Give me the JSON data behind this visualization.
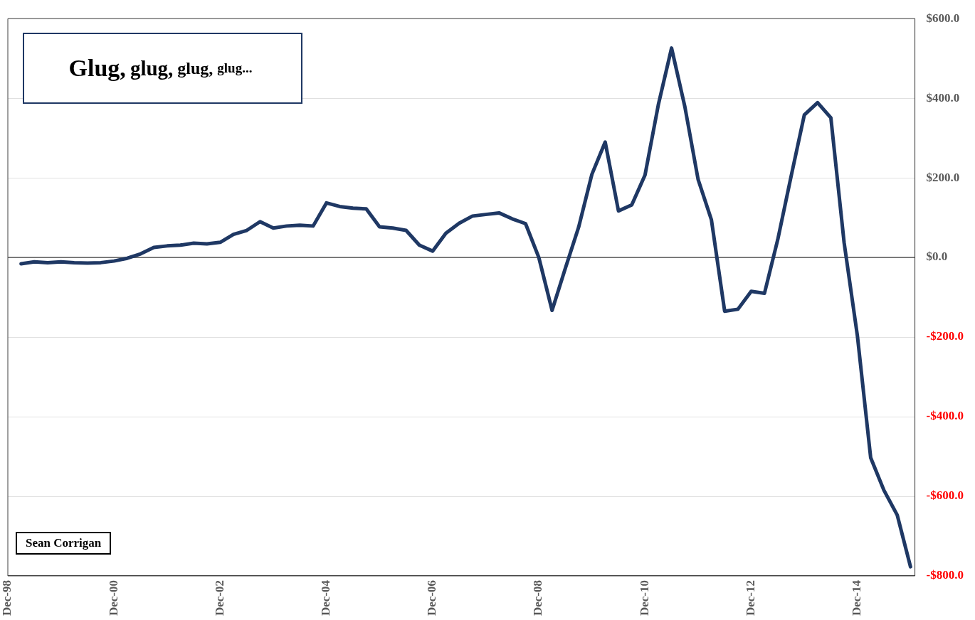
{
  "chart_data": {
    "type": "line",
    "title": "Glug, glug, glug, glug...",
    "annotations": [
      "Sean Corrigan"
    ],
    "x": [
      "1999-03",
      "1999-06",
      "1999-09",
      "1999-12",
      "2000-03",
      "2000-06",
      "2000-09",
      "2000-12",
      "2001-03",
      "2001-06",
      "2001-09",
      "2001-12",
      "2002-03",
      "2002-06",
      "2002-09",
      "2002-12",
      "2003-03",
      "2003-06",
      "2003-09",
      "2003-12",
      "2004-03",
      "2004-06",
      "2004-09",
      "2004-12",
      "2005-03",
      "2005-06",
      "2005-09",
      "2005-12",
      "2006-03",
      "2006-06",
      "2006-09",
      "2006-12",
      "2007-03",
      "2007-06",
      "2007-09",
      "2007-12",
      "2008-03",
      "2008-06",
      "2008-09",
      "2008-12",
      "2009-03",
      "2009-06",
      "2009-09",
      "2009-12",
      "2010-03",
      "2010-06",
      "2010-09",
      "2010-12",
      "2011-03",
      "2011-06",
      "2011-09",
      "2011-12",
      "2012-03",
      "2012-06",
      "2012-09",
      "2012-12",
      "2013-03",
      "2013-06",
      "2013-09",
      "2013-12",
      "2014-03",
      "2014-06",
      "2014-09",
      "2014-12",
      "2015-03",
      "2015-06",
      "2015-09",
      "2015-12"
    ],
    "series": [
      {
        "color": "#1f3864",
        "values": [
          -16,
          -11,
          -13,
          -11,
          -13,
          -14,
          -13,
          -9,
          -2,
          9,
          25,
          29,
          31,
          36,
          34,
          38,
          58,
          68,
          90,
          74,
          79,
          81,
          79,
          137,
          128,
          124,
          122,
          77,
          74,
          68,
          31,
          16,
          61,
          86,
          104,
          108,
          112,
          97,
          85,
          0,
          -133,
          -27,
          76,
          209,
          290,
          117,
          132,
          207,
          383,
          526,
          379,
          196,
          95,
          -135,
          -130,
          -85,
          -90,
          45,
          203,
          358,
          389,
          351,
          37,
          -197,
          -503,
          -585,
          -647,
          -777
        ]
      }
    ],
    "xlim": [
      "1998-12",
      "2016-01"
    ],
    "xticks": [
      {
        "value": "1998-12",
        "label": "Dec-98"
      },
      {
        "value": "2000-12",
        "label": "Dec-00"
      },
      {
        "value": "2002-12",
        "label": "Dec-02"
      },
      {
        "value": "2004-12",
        "label": "Dec-04"
      },
      {
        "value": "2006-12",
        "label": "Dec-06"
      },
      {
        "value": "2008-12",
        "label": "Dec-08"
      },
      {
        "value": "2010-12",
        "label": "Dec-10"
      },
      {
        "value": "2012-12",
        "label": "Dec-12"
      },
      {
        "value": "2014-12",
        "label": "Dec-14"
      }
    ],
    "ylim": [
      -800,
      600
    ],
    "yticks": [
      {
        "value": -800,
        "label": "-$800.0"
      },
      {
        "value": -600,
        "label": "-$600.0"
      },
      {
        "value": -400,
        "label": "-$400.0"
      },
      {
        "value": -200,
        "label": "-$200.0"
      },
      {
        "value": 0,
        "label": "$0.0"
      },
      {
        "value": 200,
        "label": "$200.0"
      },
      {
        "value": 400,
        "label": "$400.0"
      },
      {
        "value": 600,
        "label": "$600.0"
      }
    ],
    "ref_lines": [
      {
        "axis": "y",
        "value": 0,
        "color": "#404040"
      }
    ],
    "grid": "y",
    "legend": false,
    "marker": "none",
    "line_style": "solid"
  }
}
